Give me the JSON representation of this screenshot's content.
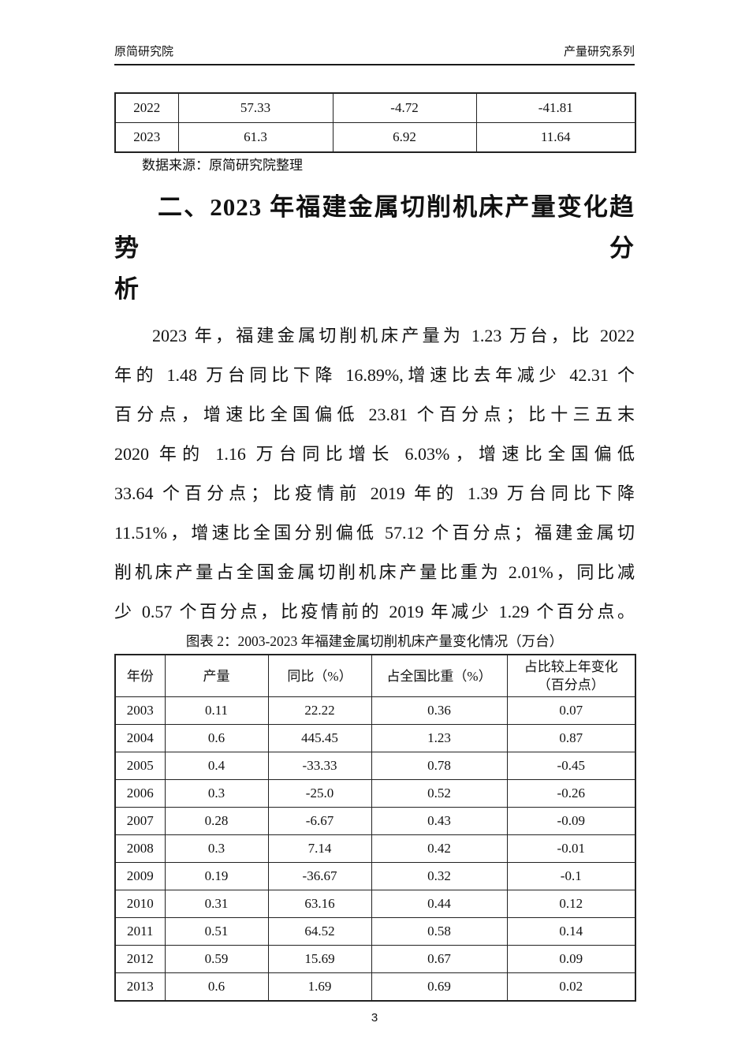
{
  "header": {
    "left": "原简研究院",
    "right": "产量研究系列"
  },
  "top_table": {
    "rows": [
      [
        "2022",
        "57.33",
        "-4.72",
        "-41.81"
      ],
      [
        "2023",
        "61.3",
        "6.92",
        "11.64"
      ]
    ]
  },
  "source_note": "数据来源：原简研究院整理",
  "section_heading": "二、2023 年福建金属切削机床产量变化趋势分析",
  "heading_lines": [
    "二、2023 年福建金属切削机床产量变化趋势分",
    "析"
  ],
  "paragraph_text": "2023 年，福建金属切削机床产量为 1.23 万台，比 2022 年的 1.48 万台同比下降 16.89%,增速比去年减少 42.31 个百分点，增速比全国偏低 23.81 个百分点；比十三五末 2020 年的 1.16 万台同比增长 6.03%，增速比全国偏低 33.64 个百分点；比疫情前 2019 年的 1.39 万台同比下降 11.51%，增速比全国分别偏低 57.12 个百分点；福建金属切削机床产量占全国金属切削机床产量比重为 2.01%，同比减少 0.57 个百分点，比疫情前的 2019 年减少 1.29 个百分点。",
  "paragraph_lines": [
    "2023 年，福建金属切削机床产量为 1.23 万台，比 2022",
    "年的 1.48 万台同比下降 16.89%,增速比去年减少 42.31 个",
    "百分点，增速比全国偏低 23.81 个百分点；比十三五末",
    "2020 年的 1.16 万台同比增长 6.03%，增速比全国偏低",
    "33.64 个百分点；比疫情前 2019 年的 1.39 万台同比下降",
    "11.51%，增速比全国分别偏低 57.12 个百分点；福建金属切",
    "削机床产量占全国金属切削机床产量比重为 2.01%，同比减",
    "少 0.57 个百分点，比疫情前的 2019 年减少 1.29 个百分点。"
  ],
  "figure_caption": "图表 2：2003-2023 年福建金属切削机床产量变化情况（万台）",
  "main_table": {
    "columns": [
      "年份",
      "产量",
      "同比（%）",
      "占全国比重（%）",
      "占比较上年变化\n（百分点）"
    ],
    "rows": [
      [
        "2003",
        "0.11",
        "22.22",
        "0.36",
        "0.07"
      ],
      [
        "2004",
        "0.6",
        "445.45",
        "1.23",
        "0.87"
      ],
      [
        "2005",
        "0.4",
        "-33.33",
        "0.78",
        "-0.45"
      ],
      [
        "2006",
        "0.3",
        "-25.0",
        "0.52",
        "-0.26"
      ],
      [
        "2007",
        "0.28",
        "-6.67",
        "0.43",
        "-0.09"
      ],
      [
        "2008",
        "0.3",
        "7.14",
        "0.42",
        "-0.01"
      ],
      [
        "2009",
        "0.19",
        "-36.67",
        "0.32",
        "-0.1"
      ],
      [
        "2010",
        "0.31",
        "63.16",
        "0.44",
        "0.12"
      ],
      [
        "2011",
        "0.51",
        "64.52",
        "0.58",
        "0.14"
      ],
      [
        "2012",
        "0.59",
        "15.69",
        "0.67",
        "0.09"
      ],
      [
        "2013",
        "0.6",
        "1.69",
        "0.69",
        "0.02"
      ]
    ]
  },
  "page_number": "3"
}
